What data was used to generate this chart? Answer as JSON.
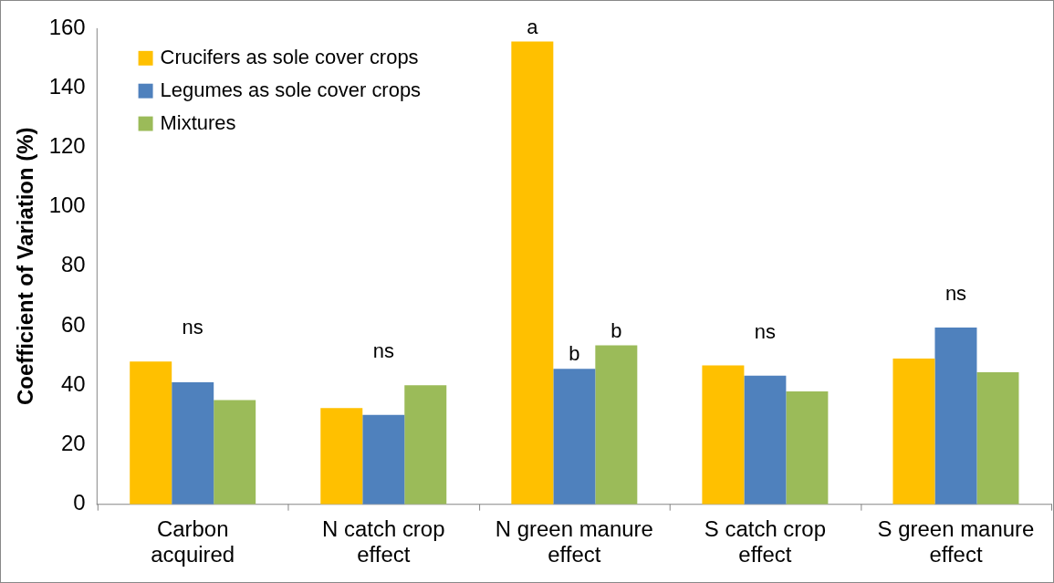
{
  "chart_data": {
    "type": "bar",
    "ylabel": "Coefficient of Variation (%)",
    "categories": [
      "Carbon acquired",
      "N catch crop effect",
      "N green manure effect",
      "S catch crop effect",
      "S green manure effect"
    ],
    "series": [
      {
        "name": "Crucifers as sole cover crops",
        "color": "#ffc000",
        "values": [
          48,
          32.3,
          155.5,
          46.7,
          49
        ],
        "value_labels": [
          null,
          null,
          "a",
          null,
          null
        ]
      },
      {
        "name": "Legumes as sole cover crops",
        "color": "#4f81bd",
        "values": [
          41,
          30,
          45.5,
          43.2,
          59.4
        ],
        "value_labels": [
          null,
          null,
          "b",
          null,
          null
        ]
      },
      {
        "name": "Mixtures",
        "color": "#9bbb59",
        "values": [
          35,
          40,
          53.4,
          37.9,
          44.4
        ],
        "value_labels": [
          null,
          null,
          "b",
          null,
          null
        ]
      }
    ],
    "ylim": [
      0,
      160
    ],
    "yticks": [
      0,
      20,
      40,
      60,
      80,
      100,
      120,
      140,
      160
    ],
    "grid": false,
    "legend": "top left",
    "annotations": [
      "ns",
      "ns",
      "ns",
      "ns"
    ]
  }
}
